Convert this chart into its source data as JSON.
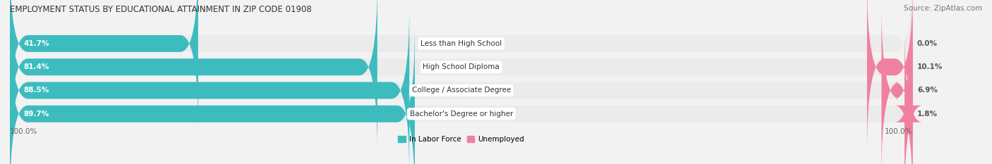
{
  "title": "EMPLOYMENT STATUS BY EDUCATIONAL ATTAINMENT IN ZIP CODE 01908",
  "source": "Source: ZipAtlas.com",
  "categories": [
    "Less than High School",
    "High School Diploma",
    "College / Associate Degree",
    "Bachelor's Degree or higher"
  ],
  "in_labor_force": [
    41.7,
    81.4,
    88.5,
    89.7
  ],
  "unemployed": [
    0.0,
    10.1,
    6.9,
    1.8
  ],
  "labor_color": "#3dbcbf",
  "unemployed_color": "#f080a0",
  "bg_color": "#f2f2f2",
  "bar_bg_color": "#e4e4e4",
  "row_bg_color": "#ebebeb",
  "axis_label_left": "100.0%",
  "axis_label_right": "100.0%",
  "title_fontsize": 8.5,
  "source_fontsize": 7.5,
  "label_fontsize": 7.5,
  "legend_fontsize": 7.5,
  "bar_label_fontsize": 7.5,
  "cat_label_fontsize": 7.5
}
